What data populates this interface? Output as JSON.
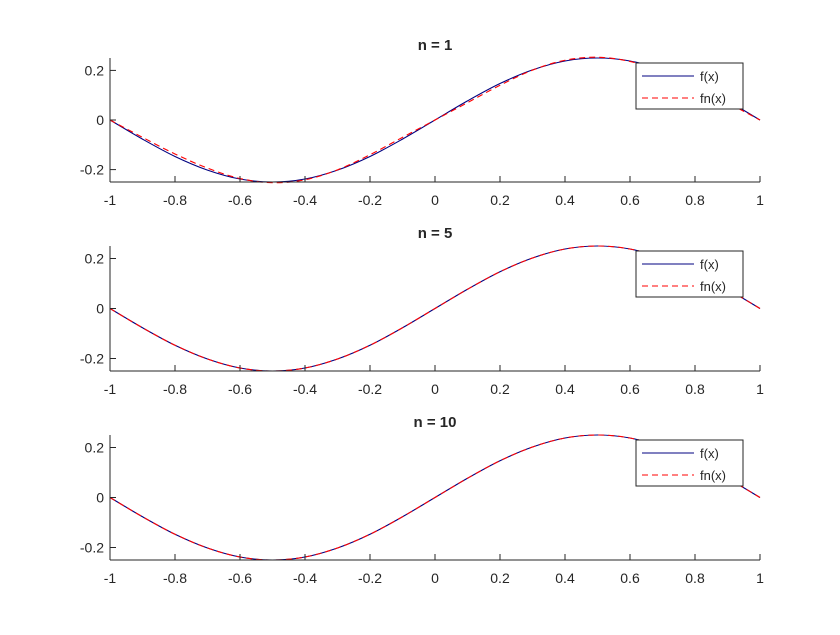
{
  "figure": {
    "background": "#ffffff"
  },
  "style": {
    "axis_color": "#262626",
    "f_color": "#000080",
    "fn_color": "#ff0000"
  },
  "chart_data": [
    {
      "type": "line",
      "title": "n = 1",
      "xlim": [
        -1,
        1
      ],
      "ylim": [
        -0.25,
        0.25
      ],
      "xticks": [
        -1,
        -0.8,
        -0.6,
        -0.4,
        -0.2,
        0,
        0.2,
        0.4,
        0.6,
        0.8,
        1
      ],
      "xtick_labels": [
        "-1",
        "-0.8",
        "-0.6",
        "-0.4",
        "-0.2",
        "0",
        "0.2",
        "0.4",
        "0.6",
        "0.8",
        "1"
      ],
      "yticks": [
        -0.2,
        0,
        0.2
      ],
      "ytick_labels": [
        "-0.2",
        "0",
        "0.2"
      ],
      "legend": "top-right",
      "grid": false,
      "series": [
        {
          "name": "f(x)",
          "style": "solid",
          "color": "#000080",
          "x": [
            -1,
            -0.9,
            -0.8,
            -0.7,
            -0.6,
            -0.5,
            -0.4,
            -0.3,
            -0.2,
            -0.1,
            0,
            0.1,
            0.2,
            0.3,
            0.4,
            0.5,
            0.6,
            0.7,
            0.8,
            0.9,
            1
          ],
          "y": [
            0,
            -0.077,
            -0.147,
            -0.202,
            -0.238,
            -0.25,
            -0.238,
            -0.202,
            -0.147,
            -0.077,
            0,
            0.077,
            0.147,
            0.202,
            0.238,
            0.25,
            0.238,
            0.202,
            0.147,
            0.077,
            0
          ]
        },
        {
          "name": "fn(x)",
          "style": "dashed",
          "color": "#ff0000",
          "x": [
            -1,
            -0.9,
            -0.8,
            -0.7,
            -0.6,
            -0.5,
            -0.4,
            -0.3,
            -0.2,
            -0.1,
            0,
            0.1,
            0.2,
            0.3,
            0.4,
            0.5,
            0.6,
            0.7,
            0.8,
            0.9,
            1
          ],
          "y": [
            0,
            -0.07,
            -0.137,
            -0.194,
            -0.236,
            -0.253,
            -0.241,
            -0.201,
            -0.14,
            -0.07,
            0,
            0.07,
            0.14,
            0.201,
            0.241,
            0.253,
            0.236,
            0.194,
            0.137,
            0.07,
            0
          ]
        }
      ]
    },
    {
      "type": "line",
      "title": "n = 5",
      "xlim": [
        -1,
        1
      ],
      "ylim": [
        -0.25,
        0.25
      ],
      "xticks": [
        -1,
        -0.8,
        -0.6,
        -0.4,
        -0.2,
        0,
        0.2,
        0.4,
        0.6,
        0.8,
        1
      ],
      "xtick_labels": [
        "-1",
        "-0.8",
        "-0.6",
        "-0.4",
        "-0.2",
        "0",
        "0.2",
        "0.4",
        "0.6",
        "0.8",
        "1"
      ],
      "yticks": [
        -0.2,
        0,
        0.2
      ],
      "ytick_labels": [
        "-0.2",
        "0",
        "0.2"
      ],
      "legend": "top-right",
      "grid": false,
      "series": [
        {
          "name": "f(x)",
          "style": "solid",
          "color": "#000080",
          "x": [
            -1,
            -0.9,
            -0.8,
            -0.7,
            -0.6,
            -0.5,
            -0.4,
            -0.3,
            -0.2,
            -0.1,
            0,
            0.1,
            0.2,
            0.3,
            0.4,
            0.5,
            0.6,
            0.7,
            0.8,
            0.9,
            1
          ],
          "y": [
            0,
            -0.077,
            -0.147,
            -0.202,
            -0.238,
            -0.25,
            -0.238,
            -0.202,
            -0.147,
            -0.077,
            0,
            0.077,
            0.147,
            0.202,
            0.238,
            0.25,
            0.238,
            0.202,
            0.147,
            0.077,
            0
          ]
        },
        {
          "name": "fn(x)",
          "style": "dashed",
          "color": "#ff0000",
          "x": [
            -1,
            -0.9,
            -0.8,
            -0.7,
            -0.6,
            -0.5,
            -0.4,
            -0.3,
            -0.2,
            -0.1,
            0,
            0.1,
            0.2,
            0.3,
            0.4,
            0.5,
            0.6,
            0.7,
            0.8,
            0.9,
            1
          ],
          "y": [
            0,
            -0.077,
            -0.147,
            -0.202,
            -0.238,
            -0.25,
            -0.238,
            -0.202,
            -0.147,
            -0.077,
            0,
            0.077,
            0.147,
            0.202,
            0.238,
            0.25,
            0.238,
            0.202,
            0.147,
            0.077,
            0
          ]
        }
      ]
    },
    {
      "type": "line",
      "title": "n = 10",
      "xlim": [
        -1,
        1
      ],
      "ylim": [
        -0.25,
        0.25
      ],
      "xticks": [
        -1,
        -0.8,
        -0.6,
        -0.4,
        -0.2,
        0,
        0.2,
        0.4,
        0.6,
        0.8,
        1
      ],
      "xtick_labels": [
        "-1",
        "-0.8",
        "-0.6",
        "-0.4",
        "-0.2",
        "0",
        "0.2",
        "0.4",
        "0.6",
        "0.8",
        "1"
      ],
      "yticks": [
        -0.2,
        0,
        0.2
      ],
      "ytick_labels": [
        "-0.2",
        "0",
        "0.2"
      ],
      "legend": "top-right",
      "grid": false,
      "series": [
        {
          "name": "f(x)",
          "style": "solid",
          "color": "#000080",
          "x": [
            -1,
            -0.9,
            -0.8,
            -0.7,
            -0.6,
            -0.5,
            -0.4,
            -0.3,
            -0.2,
            -0.1,
            0,
            0.1,
            0.2,
            0.3,
            0.4,
            0.5,
            0.6,
            0.7,
            0.8,
            0.9,
            1
          ],
          "y": [
            0,
            -0.077,
            -0.147,
            -0.202,
            -0.238,
            -0.25,
            -0.238,
            -0.202,
            -0.147,
            -0.077,
            0,
            0.077,
            0.147,
            0.202,
            0.238,
            0.25,
            0.238,
            0.202,
            0.147,
            0.077,
            0
          ]
        },
        {
          "name": "fn(x)",
          "style": "dashed",
          "color": "#ff0000",
          "x": [
            -1,
            -0.9,
            -0.8,
            -0.7,
            -0.6,
            -0.5,
            -0.4,
            -0.3,
            -0.2,
            -0.1,
            0,
            0.1,
            0.2,
            0.3,
            0.4,
            0.5,
            0.6,
            0.7,
            0.8,
            0.9,
            1
          ],
          "y": [
            0,
            -0.077,
            -0.147,
            -0.202,
            -0.238,
            -0.25,
            -0.238,
            -0.202,
            -0.147,
            -0.077,
            0,
            0.077,
            0.147,
            0.202,
            0.238,
            0.25,
            0.238,
            0.202,
            0.147,
            0.077,
            0
          ]
        }
      ]
    }
  ]
}
